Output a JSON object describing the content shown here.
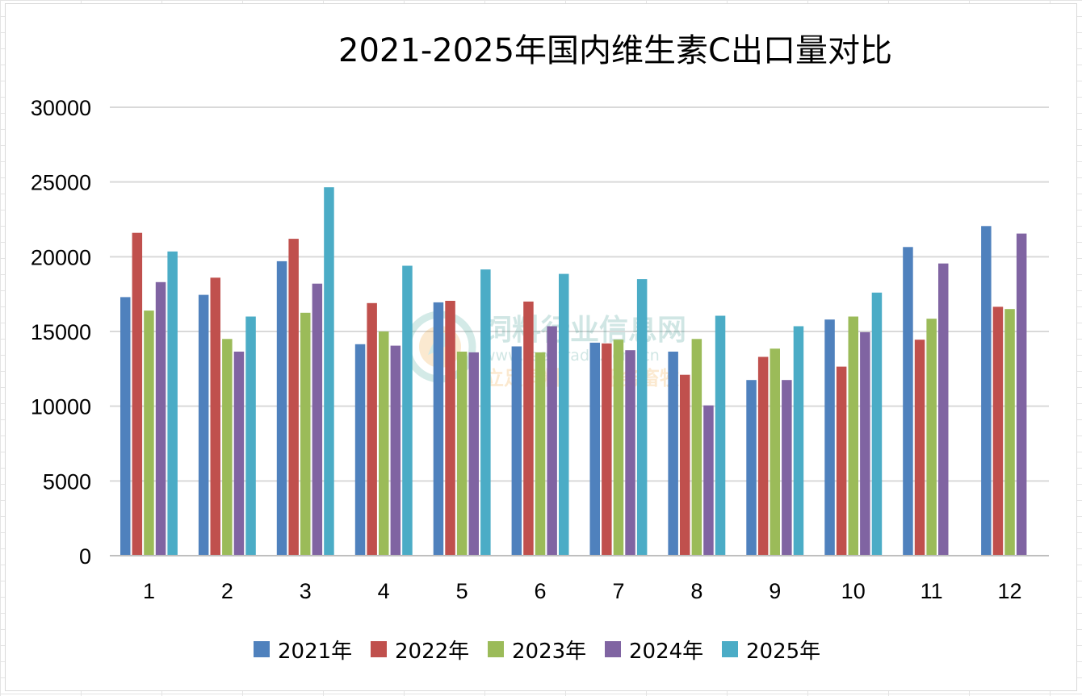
{
  "chart_data": {
    "type": "bar",
    "title": "2021-2025年国内维生素C出口量对比",
    "xlabel": "",
    "ylabel": "",
    "categories": [
      "1",
      "2",
      "3",
      "4",
      "5",
      "6",
      "7",
      "8",
      "9",
      "10",
      "11",
      "12"
    ],
    "ylim": [
      0,
      30000
    ],
    "yticks": [
      0,
      5000,
      10000,
      15000,
      20000,
      25000,
      30000
    ],
    "ytick_labels": [
      "0",
      "5000",
      "10000",
      "15000",
      "20000",
      "25000",
      "30000"
    ],
    "grid": true,
    "legend_position": "bottom",
    "series": [
      {
        "name": "2021年",
        "color": "#4f81bd",
        "values": [
          17300,
          17450,
          19700,
          14150,
          16950,
          14000,
          14250,
          13650,
          11750,
          15800,
          20650,
          22050
        ]
      },
      {
        "name": "2022年",
        "color": "#c0504d",
        "values": [
          21600,
          18600,
          21200,
          16900,
          17050,
          17000,
          14200,
          12100,
          13300,
          12650,
          14450,
          16650
        ]
      },
      {
        "name": "2023年",
        "color": "#9bbb59",
        "values": [
          16400,
          14500,
          16250,
          15000,
          13650,
          13600,
          14450,
          14500,
          13850,
          16000,
          15850,
          16500
        ]
      },
      {
        "name": "2024年",
        "color": "#8064a2",
        "values": [
          18300,
          13650,
          18200,
          14050,
          13600,
          15350,
          13750,
          10050,
          11750,
          14950,
          19550,
          21550
        ]
      },
      {
        "name": "2025年",
        "color": "#4bacc6",
        "values": [
          20350,
          16000,
          24650,
          19400,
          19150,
          18850,
          18500,
          16050,
          15350,
          17600,
          null,
          null
        ]
      }
    ]
  },
  "watermark": {
    "name": "饲料行业信息网",
    "url": "www.feedtrade.com.cn",
    "slogan_left": "立足饲料",
    "slogan_right": "服务畜牧",
    "icon": "leaf-circle-logo"
  }
}
